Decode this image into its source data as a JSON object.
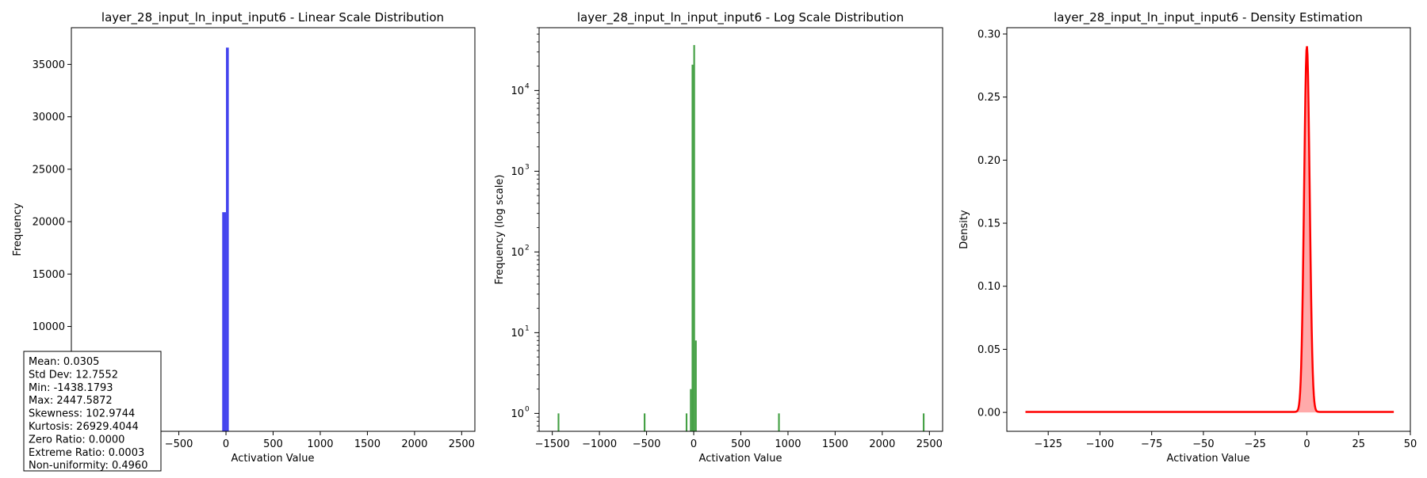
{
  "chart_data": [
    {
      "type": "bar",
      "title": "layer_28_input_ln_input_input6 - Linear Scale Distribution",
      "xlabel": "Activation Value",
      "ylabel": "Frequency",
      "xlim": [
        -1640,
        2640
      ],
      "ylim": [
        0,
        38500
      ],
      "xticks": [
        -1000,
        -500,
        0,
        500,
        1000,
        1500,
        2000,
        2500
      ],
      "yticks": [
        10000,
        15000,
        20000,
        25000,
        30000,
        35000
      ],
      "color": "#4444ee",
      "bins": [
        {
          "x0": -40,
          "x1": 0,
          "value": 20900
        },
        {
          "x0": 0,
          "x1": 30,
          "value": 36600
        }
      ],
      "stats_box": [
        "Mean: 0.0305",
        "Std Dev: 12.7552",
        "Min: -1438.1793",
        "Max: 2447.5872",
        "Skewness: 102.9744",
        "Kurtosis: 26929.4044",
        "Zero Ratio: 0.0000",
        "Extreme Ratio: 0.0003",
        "Non-uniformity: 0.4960"
      ]
    },
    {
      "type": "bar",
      "title": "layer_28_input_ln_input_input6 - Log Scale Distribution",
      "xlabel": "Activation Value",
      "ylabel": "Frequency (log scale)",
      "yscale": "log",
      "xlim": [
        -1640,
        2640
      ],
      "ylim": [
        0.6,
        60000
      ],
      "xticks": [
        -1500,
        -1000,
        -500,
        0,
        500,
        1000,
        1500,
        2000,
        2500
      ],
      "yticks": [
        {
          "value": 1,
          "label": "10",
          "exp": "0"
        },
        {
          "value": 10,
          "label": "10",
          "exp": "1"
        },
        {
          "value": 100,
          "label": "10",
          "exp": "2"
        },
        {
          "value": 1000,
          "label": "10",
          "exp": "3"
        },
        {
          "value": 10000,
          "label": "10",
          "exp": "4"
        }
      ],
      "color": "#44a044",
      "bins": [
        {
          "x0": -1443,
          "x1": -1425,
          "value": 1
        },
        {
          "x0": -530,
          "x1": -512,
          "value": 1
        },
        {
          "x0": -85,
          "x1": -67,
          "value": 1
        },
        {
          "x0": -40,
          "x1": -22,
          "value": 2
        },
        {
          "x0": -22,
          "x1": -4,
          "value": 20900
        },
        {
          "x0": -4,
          "x1": 14,
          "value": 36600
        },
        {
          "x0": 14,
          "x1": 32,
          "value": 8
        },
        {
          "x0": 895,
          "x1": 913,
          "value": 1
        },
        {
          "x0": 2430,
          "x1": 2448,
          "value": 1
        }
      ]
    },
    {
      "type": "area",
      "title": "layer_28_input_ln_input_input6 - Density Estimation",
      "xlabel": "Activation Value",
      "ylabel": "Density",
      "xlim": [
        -145,
        50
      ],
      "ylim": [
        -0.015,
        0.305
      ],
      "xticks": [
        -125,
        -100,
        -75,
        -50,
        -25,
        0,
        25,
        50
      ],
      "yticks": [
        0.0,
        0.05,
        0.1,
        0.15,
        0.2,
        0.25,
        0.3
      ],
      "line_color": "#ff0000",
      "fill_color": "#ffaaaa",
      "x_range": [
        -136,
        42
      ],
      "peak": {
        "x": 0,
        "y": 0.29
      },
      "spread": 1.35
    }
  ]
}
